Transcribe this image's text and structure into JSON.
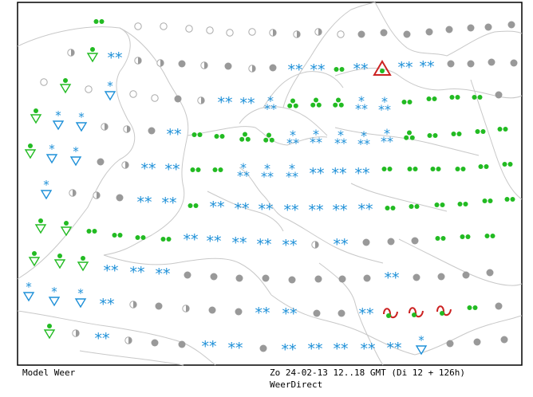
{
  "caption": {
    "model": "Model Weer",
    "date": "Zo 24-02-13 12..18 GMT (Di 12 + 126h)",
    "source": "WeerDirect"
  },
  "colors": {
    "background": "#ffffff",
    "coastline": "#c8c8c8",
    "frame": "#000000",
    "snow": "#1e90d8",
    "rain": "#22bb22",
    "overcast": "#999999",
    "partly_cloudy_outline": "#aaaaaa",
    "warning": "#cc2222",
    "thunder": "#cc2222"
  },
  "legend_symbols": {
    "clear": "open-circle",
    "partly_cloudy": "half-filled-circle",
    "overcast": "grey-filled-circle",
    "drizzle": "two-green-dots",
    "rain": "three-green-dots",
    "shower": "green-down-triangle-with-dot",
    "snow": "two-blue-asterisks",
    "heavy_snow": "three-blue-asterisks",
    "snow_shower": "blue-down-triangle-with-asterisk",
    "thunderstorm": "red-up-triangle-warning",
    "thunder_shower": "red-wave-with-green-dot"
  }
}
